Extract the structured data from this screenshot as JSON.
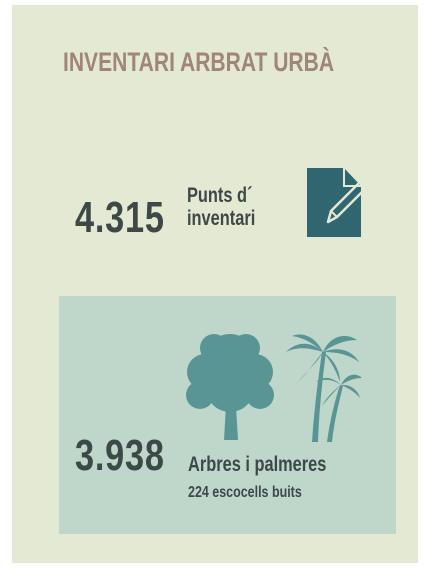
{
  "header": {
    "title": "INVENTARI ARBRAT URBÀ"
  },
  "stats": [
    {
      "number": "4.315",
      "label_lines": [
        "Punts d´",
        "inventari"
      ]
    },
    {
      "number": "3.938",
      "label": "Arbres i palmeres",
      "sublabel": "224 escocells buits"
    }
  ]
}
